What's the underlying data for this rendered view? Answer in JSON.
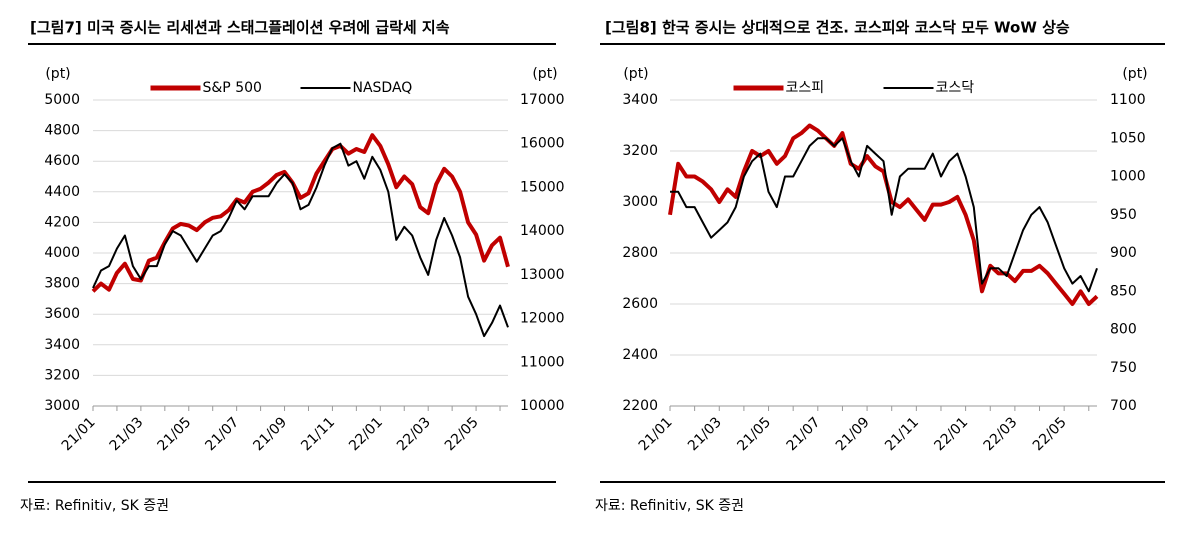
{
  "chart_data": [
    {
      "type": "line",
      "title": "[그림7] 미국 증시는 리세션과 스태그플레이션 우려에 급락세 지속",
      "source": "자료: Refinitiv, SK 증권",
      "y_label": "(pt)",
      "y2_label": "(pt)",
      "categories": [
        "21/01",
        null,
        null,
        null,
        null,
        null,
        "21/03",
        null,
        null,
        null,
        null,
        null,
        "21/05",
        null,
        null,
        null,
        null,
        null,
        "21/07",
        null,
        null,
        null,
        null,
        null,
        "21/09",
        null,
        null,
        null,
        null,
        null,
        "21/11",
        null,
        null,
        null,
        null,
        null,
        "22/01",
        null,
        null,
        null,
        null,
        null,
        "22/03",
        null,
        null,
        null,
        null,
        null,
        "22/05",
        null,
        null,
        null,
        null
      ],
      "series": [
        {
          "name": "S&P 500",
          "color": "#c00000",
          "values": [
            3750,
            3800,
            3760,
            3870,
            3930,
            3830,
            3820,
            3950,
            3970,
            4070,
            4160,
            4190,
            4180,
            4150,
            4200,
            4230,
            4240,
            4280,
            4350,
            4330,
            4400,
            4420,
            4460,
            4510,
            4530,
            4460,
            4360,
            4390,
            4520,
            4600,
            4680,
            4700,
            4650,
            4680,
            4660,
            4770,
            4700,
            4580,
            4430,
            4500,
            4450,
            4300,
            4260,
            4450,
            4550,
            4500,
            4400,
            4200,
            4120,
            3950,
            4050,
            4100,
            3910
          ]
        },
        {
          "name": "NASDAQ",
          "color": "#000000",
          "axis": "y2",
          "values": [
            12700,
            13100,
            13200,
            13600,
            13900,
            13200,
            12900,
            13200,
            13200,
            13700,
            14000,
            13900,
            13600,
            13300,
            13600,
            13900,
            14000,
            14300,
            14700,
            14500,
            14800,
            14800,
            14800,
            15100,
            15300,
            15100,
            14500,
            14600,
            15000,
            15500,
            15900,
            16000,
            15500,
            15600,
            15200,
            15700,
            15400,
            14900,
            13800,
            14100,
            13900,
            13400,
            13000,
            13800,
            14300,
            13900,
            13400,
            12500,
            12100,
            11600,
            11900,
            12300,
            11800
          ]
        }
      ],
      "ylim": [
        3000,
        5000
      ],
      "yticks": [
        3000,
        3200,
        3400,
        3600,
        3800,
        4000,
        4200,
        4400,
        4600,
        4800,
        5000
      ],
      "y2lim": [
        10000,
        17000
      ],
      "y2ticks": [
        10000,
        11000,
        12000,
        13000,
        14000,
        15000,
        16000,
        17000
      ],
      "grid": true,
      "legend": "top"
    },
    {
      "type": "line",
      "title": "[그림8] 한국 증시는 상대적으로 견조. 코스피와 코스닥 모두 WoW 상승",
      "source": "자료: Refinitiv, SK 증권",
      "y_label": "(pt)",
      "y2_label": "(pt)",
      "categories": [
        "21/01",
        null,
        null,
        null,
        null,
        null,
        "21/03",
        null,
        null,
        null,
        null,
        null,
        "21/05",
        null,
        null,
        null,
        null,
        null,
        "21/07",
        null,
        null,
        null,
        null,
        null,
        "21/09",
        null,
        null,
        null,
        null,
        null,
        "21/11",
        null,
        null,
        null,
        null,
        null,
        "22/01",
        null,
        null,
        null,
        null,
        null,
        "22/03",
        null,
        null,
        null,
        null,
        null,
        "22/05",
        null,
        null,
        null,
        null
      ],
      "series": [
        {
          "name": "코스피",
          "color": "#c00000",
          "values": [
            2950,
            3150,
            3100,
            3100,
            3080,
            3050,
            3000,
            3050,
            3020,
            3120,
            3200,
            3180,
            3200,
            3150,
            3180,
            3250,
            3270,
            3300,
            3280,
            3250,
            3220,
            3270,
            3150,
            3130,
            3180,
            3140,
            3120,
            3000,
            2980,
            3010,
            2970,
            2930,
            2990,
            2990,
            3000,
            3020,
            2950,
            2850,
            2650,
            2750,
            2720,
            2720,
            2690,
            2730,
            2730,
            2750,
            2720,
            2680,
            2640,
            2600,
            2650,
            2600,
            2630
          ]
        },
        {
          "name": "코스닥",
          "color": "#000000",
          "axis": "y2",
          "values": [
            980,
            980,
            960,
            960,
            940,
            920,
            930,
            940,
            960,
            1000,
            1020,
            1030,
            980,
            960,
            1000,
            1000,
            1020,
            1040,
            1050,
            1050,
            1040,
            1050,
            1020,
            1000,
            1040,
            1030,
            1020,
            950,
            1000,
            1010,
            1010,
            1010,
            1030,
            1000,
            1020,
            1030,
            1000,
            960,
            860,
            880,
            880,
            870,
            900,
            930,
            950,
            960,
            940,
            910,
            880,
            860,
            870,
            850,
            880
          ]
        }
      ],
      "ylim": [
        2200,
        3400
      ],
      "yticks": [
        2200,
        2400,
        2600,
        2800,
        3000,
        3200,
        3400
      ],
      "y2lim": [
        700,
        1100
      ],
      "y2ticks": [
        700,
        750,
        800,
        850,
        900,
        950,
        1000,
        1050,
        1100
      ],
      "grid": true,
      "legend": "top"
    }
  ]
}
